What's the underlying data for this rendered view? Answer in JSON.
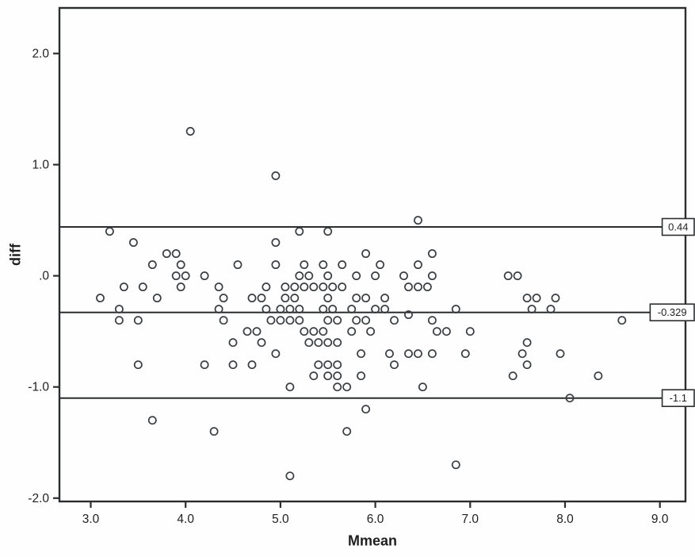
{
  "chart_data": {
    "type": "scatter",
    "title": "",
    "xlabel": "Mmean",
    "ylabel": "diff",
    "xlim": [
      2.67,
      9.27
    ],
    "ylim": [
      -2.03,
      2.41
    ],
    "grid": false,
    "legend_position": "none",
    "marker": "open-circle",
    "x_ticks": {
      "values": [
        3.0,
        4.0,
        5.0,
        6.0,
        7.0,
        8.0,
        9.0
      ],
      "labels": [
        "3.0",
        "4.0",
        "5.0",
        "6.0",
        "7.0",
        "8.0",
        "9.0"
      ]
    },
    "y_ticks": {
      "values": [
        2.0,
        1.0,
        0.0,
        -1.0,
        -2.0
      ],
      "labels": [
        "2.0",
        "1.0",
        ".0",
        "-1.0",
        "-2.0"
      ]
    },
    "reference_lines": [
      {
        "value": 0.44,
        "label": "0.44"
      },
      {
        "value": -0.329,
        "label": "-0.329"
      },
      {
        "value": -1.1,
        "label": "-1.1"
      }
    ],
    "colors": {
      "marker_stroke": "#3a3e42",
      "line": "#2b2d2f",
      "border": "#2b2d2f",
      "text": "#1f1f1f",
      "background": "#fefefe",
      "label_box_bg": "#ffffff"
    },
    "points": [
      [
        4.05,
        1.3
      ],
      [
        4.95,
        0.9
      ],
      [
        6.45,
        0.5
      ],
      [
        3.2,
        0.4
      ],
      [
        5.2,
        0.4
      ],
      [
        5.5,
        0.4
      ],
      [
        3.45,
        0.3
      ],
      [
        4.95,
        0.3
      ],
      [
        3.8,
        0.2
      ],
      [
        3.9,
        0.2
      ],
      [
        5.9,
        0.2
      ],
      [
        6.6,
        0.2
      ],
      [
        3.65,
        0.1
      ],
      [
        3.95,
        0.1
      ],
      [
        4.55,
        0.1
      ],
      [
        4.95,
        0.1
      ],
      [
        5.25,
        0.1
      ],
      [
        5.45,
        0.1
      ],
      [
        5.65,
        0.1
      ],
      [
        6.05,
        0.1
      ],
      [
        6.45,
        0.1
      ],
      [
        3.9,
        0.0
      ],
      [
        4.0,
        0.0
      ],
      [
        4.2,
        0.0
      ],
      [
        5.2,
        0.0
      ],
      [
        5.3,
        0.0
      ],
      [
        5.5,
        0.0
      ],
      [
        5.8,
        0.0
      ],
      [
        6.0,
        0.0
      ],
      [
        6.3,
        0.0
      ],
      [
        6.6,
        0.0
      ],
      [
        7.4,
        0.0
      ],
      [
        7.5,
        0.0
      ],
      [
        3.35,
        -0.1
      ],
      [
        3.55,
        -0.1
      ],
      [
        3.95,
        -0.1
      ],
      [
        4.35,
        -0.1
      ],
      [
        4.85,
        -0.1
      ],
      [
        5.05,
        -0.1
      ],
      [
        5.15,
        -0.1
      ],
      [
        5.25,
        -0.1
      ],
      [
        5.35,
        -0.1
      ],
      [
        5.45,
        -0.1
      ],
      [
        5.55,
        -0.1
      ],
      [
        5.65,
        -0.1
      ],
      [
        6.35,
        -0.1
      ],
      [
        6.45,
        -0.1
      ],
      [
        6.55,
        -0.1
      ],
      [
        3.1,
        -0.2
      ],
      [
        3.7,
        -0.2
      ],
      [
        4.4,
        -0.2
      ],
      [
        4.7,
        -0.2
      ],
      [
        4.8,
        -0.2
      ],
      [
        5.05,
        -0.2
      ],
      [
        5.15,
        -0.2
      ],
      [
        5.5,
        -0.2
      ],
      [
        5.8,
        -0.2
      ],
      [
        5.9,
        -0.2
      ],
      [
        6.1,
        -0.2
      ],
      [
        7.6,
        -0.2
      ],
      [
        7.7,
        -0.2
      ],
      [
        7.9,
        -0.2
      ],
      [
        3.3,
        -0.3
      ],
      [
        4.35,
        -0.3
      ],
      [
        4.85,
        -0.3
      ],
      [
        5.0,
        -0.3
      ],
      [
        5.1,
        -0.3
      ],
      [
        5.2,
        -0.3
      ],
      [
        5.45,
        -0.3
      ],
      [
        5.55,
        -0.3
      ],
      [
        5.75,
        -0.3
      ],
      [
        6.0,
        -0.3
      ],
      [
        6.1,
        -0.3
      ],
      [
        6.35,
        -0.35
      ],
      [
        6.85,
        -0.3
      ],
      [
        7.65,
        -0.3
      ],
      [
        7.85,
        -0.3
      ],
      [
        3.3,
        -0.4
      ],
      [
        3.5,
        -0.4
      ],
      [
        4.4,
        -0.4
      ],
      [
        4.9,
        -0.4
      ],
      [
        5.0,
        -0.4
      ],
      [
        5.1,
        -0.4
      ],
      [
        5.2,
        -0.4
      ],
      [
        5.5,
        -0.4
      ],
      [
        5.6,
        -0.4
      ],
      [
        5.8,
        -0.4
      ],
      [
        5.9,
        -0.4
      ],
      [
        6.2,
        -0.4
      ],
      [
        6.6,
        -0.4
      ],
      [
        8.6,
        -0.4
      ],
      [
        4.65,
        -0.5
      ],
      [
        4.75,
        -0.5
      ],
      [
        5.25,
        -0.5
      ],
      [
        5.35,
        -0.5
      ],
      [
        5.45,
        -0.5
      ],
      [
        5.75,
        -0.5
      ],
      [
        5.95,
        -0.5
      ],
      [
        6.65,
        -0.5
      ],
      [
        6.75,
        -0.5
      ],
      [
        7.0,
        -0.5
      ],
      [
        4.5,
        -0.6
      ],
      [
        4.8,
        -0.6
      ],
      [
        5.3,
        -0.6
      ],
      [
        5.4,
        -0.6
      ],
      [
        5.5,
        -0.6
      ],
      [
        5.6,
        -0.6
      ],
      [
        7.6,
        -0.6
      ],
      [
        4.95,
        -0.7
      ],
      [
        5.85,
        -0.7
      ],
      [
        6.15,
        -0.7
      ],
      [
        6.35,
        -0.7
      ],
      [
        6.45,
        -0.7
      ],
      [
        6.6,
        -0.7
      ],
      [
        6.95,
        -0.7
      ],
      [
        7.55,
        -0.7
      ],
      [
        7.95,
        -0.7
      ],
      [
        3.5,
        -0.8
      ],
      [
        4.2,
        -0.8
      ],
      [
        4.5,
        -0.8
      ],
      [
        4.7,
        -0.8
      ],
      [
        5.4,
        -0.8
      ],
      [
        5.5,
        -0.8
      ],
      [
        5.6,
        -0.8
      ],
      [
        6.2,
        -0.8
      ],
      [
        7.6,
        -0.8
      ],
      [
        5.35,
        -0.9
      ],
      [
        5.5,
        -0.9
      ],
      [
        5.6,
        -0.9
      ],
      [
        5.85,
        -0.9
      ],
      [
        7.45,
        -0.9
      ],
      [
        8.35,
        -0.9
      ],
      [
        5.1,
        -1.0
      ],
      [
        5.6,
        -1.0
      ],
      [
        5.7,
        -1.0
      ],
      [
        6.5,
        -1.0
      ],
      [
        8.05,
        -1.1
      ],
      [
        5.9,
        -1.2
      ],
      [
        3.65,
        -1.3
      ],
      [
        4.3,
        -1.4
      ],
      [
        5.7,
        -1.4
      ],
      [
        6.85,
        -1.7
      ],
      [
        5.1,
        -1.8
      ]
    ]
  }
}
